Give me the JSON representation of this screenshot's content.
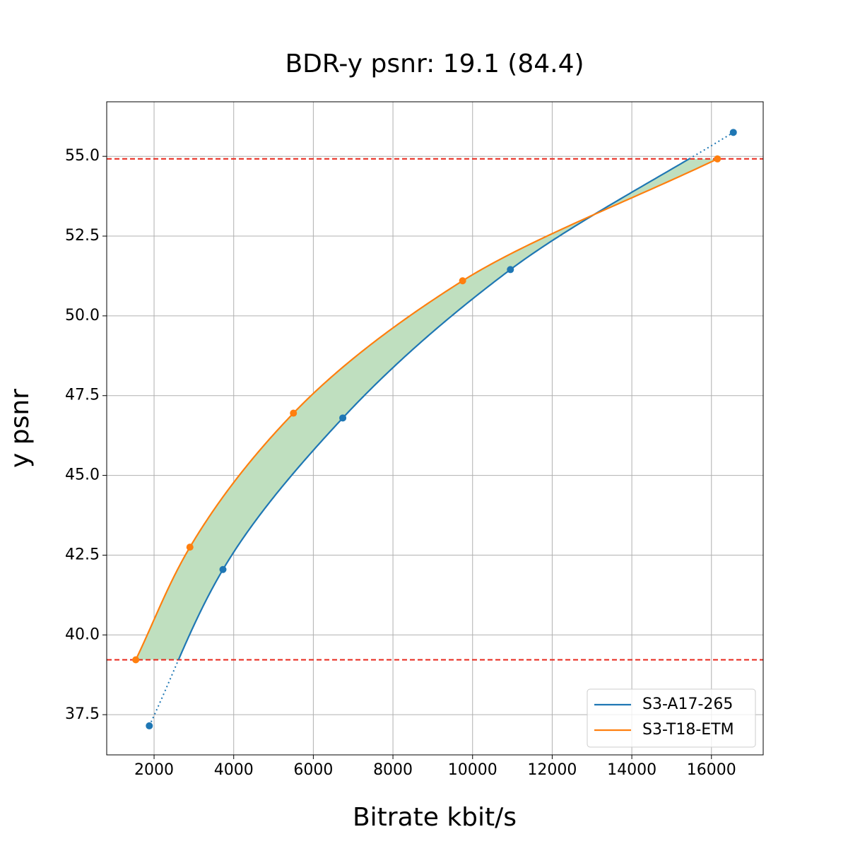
{
  "chart_data": {
    "type": "line",
    "title": "BDR-y psnr: 19.1 (84.4)",
    "x_label": "Bitrate kbit/s",
    "y_label": "y psnr",
    "series": [
      {
        "name": "S3-A17-265",
        "color": "#1f77b4",
        "x": [
          1880,
          3730,
          6740,
          10950,
          16550
        ],
        "values": [
          37.15,
          42.05,
          46.8,
          51.45,
          55.75
        ]
      },
      {
        "name": "S3-T18-ETM",
        "color": "#ff7f0e",
        "x": [
          1540,
          2900,
          5500,
          9750,
          16150
        ],
        "values": [
          39.22,
          42.75,
          46.95,
          51.1,
          54.92
        ]
      }
    ],
    "hlines": [
      39.22,
      54.92
    ],
    "hline_color": "#e8261a",
    "fill_color": "#bfdfbf",
    "xlim": [
      810,
      17300
    ],
    "ylim": [
      36.24,
      56.71
    ],
    "xticks": [
      2000,
      4000,
      6000,
      8000,
      10000,
      12000,
      14000,
      16000
    ],
    "yticks": [
      {
        "value": 37.5,
        "label": "37.5"
      },
      {
        "value": 40,
        "label": "40.0"
      },
      {
        "value": 42.5,
        "label": "42.5"
      },
      {
        "value": 45,
        "label": "45.0"
      },
      {
        "value": 47.5,
        "label": "47.5"
      },
      {
        "value": 50,
        "label": "50.0"
      },
      {
        "value": 52.5,
        "label": "52.5"
      },
      {
        "value": 55,
        "label": "55.0"
      }
    ],
    "grid": true,
    "legend": "lower right"
  }
}
